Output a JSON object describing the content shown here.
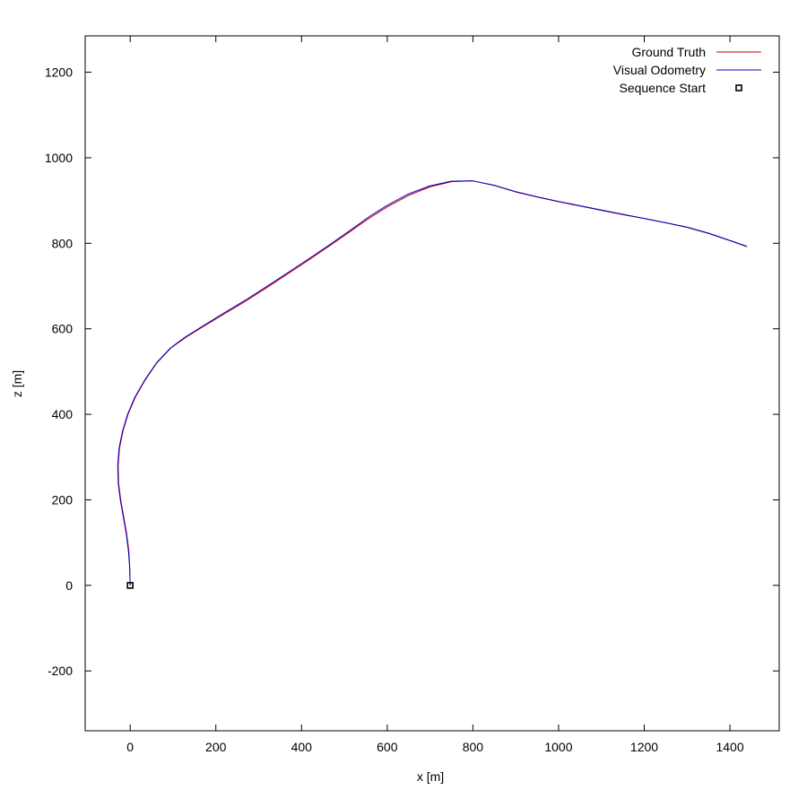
{
  "chart_data": {
    "type": "line",
    "xlabel": "x [m]",
    "ylabel": "z [m]",
    "xlim": [
      -105,
      1515
    ],
    "ylim": [
      -340,
      1285
    ],
    "xticks": [
      0,
      200,
      400,
      600,
      800,
      1000,
      1200,
      1400
    ],
    "yticks": [
      -200,
      0,
      200,
      400,
      600,
      800,
      1000,
      1200
    ],
    "grid": false,
    "legend_position": "top-right",
    "series": [
      {
        "name": "Ground Truth",
        "color": "#cc0000",
        "points": [
          [
            0,
            0
          ],
          [
            -1,
            40
          ],
          [
            -3,
            80
          ],
          [
            -8,
            120
          ],
          [
            -15,
            160
          ],
          [
            -22,
            200
          ],
          [
            -27,
            240
          ],
          [
            -28,
            280
          ],
          [
            -25,
            320
          ],
          [
            -17,
            360
          ],
          [
            -5,
            400
          ],
          [
            12,
            440
          ],
          [
            35,
            480
          ],
          [
            62,
            520
          ],
          [
            95,
            555
          ],
          [
            130,
            580
          ],
          [
            170,
            605
          ],
          [
            220,
            635
          ],
          [
            270,
            665
          ],
          [
            320,
            697
          ],
          [
            370,
            730
          ],
          [
            420,
            763
          ],
          [
            470,
            797
          ],
          [
            520,
            832
          ],
          [
            560,
            860
          ],
          [
            600,
            885
          ],
          [
            650,
            912
          ],
          [
            700,
            932
          ],
          [
            750,
            944
          ],
          [
            800,
            946
          ],
          [
            850,
            935
          ],
          [
            900,
            920
          ],
          [
            950,
            908
          ],
          [
            1000,
            897
          ],
          [
            1050,
            887
          ],
          [
            1100,
            877
          ],
          [
            1150,
            867
          ],
          [
            1200,
            858
          ],
          [
            1250,
            848
          ],
          [
            1300,
            837
          ],
          [
            1350,
            823
          ],
          [
            1400,
            806
          ],
          [
            1440,
            792
          ]
        ]
      },
      {
        "name": "Visual Odometry",
        "color": "#0000cc",
        "points": [
          [
            0,
            0
          ],
          [
            -1,
            40
          ],
          [
            -4,
            80
          ],
          [
            -9,
            120
          ],
          [
            -16,
            160
          ],
          [
            -23,
            200
          ],
          [
            -28,
            240
          ],
          [
            -29,
            280
          ],
          [
            -26,
            320
          ],
          [
            -18,
            360
          ],
          [
            -6,
            400
          ],
          [
            11,
            440
          ],
          [
            34,
            480
          ],
          [
            61,
            520
          ],
          [
            94,
            555
          ],
          [
            129,
            581
          ],
          [
            169,
            606
          ],
          [
            219,
            637
          ],
          [
            269,
            667
          ],
          [
            319,
            699
          ],
          [
            369,
            732
          ],
          [
            419,
            765
          ],
          [
            469,
            799
          ],
          [
            519,
            834
          ],
          [
            559,
            863
          ],
          [
            599,
            888
          ],
          [
            649,
            915
          ],
          [
            699,
            934
          ],
          [
            749,
            945
          ],
          [
            799,
            946
          ],
          [
            849,
            936
          ],
          [
            899,
            921
          ],
          [
            949,
            909
          ],
          [
            999,
            898
          ],
          [
            1049,
            888
          ],
          [
            1099,
            878
          ],
          [
            1149,
            868
          ],
          [
            1199,
            858
          ],
          [
            1249,
            848
          ],
          [
            1299,
            838
          ],
          [
            1349,
            824
          ],
          [
            1399,
            807
          ],
          [
            1439,
            793
          ]
        ]
      },
      {
        "name": "Sequence Start",
        "color": "#000000",
        "marker": "square",
        "points": [
          [
            0,
            0
          ]
        ]
      }
    ]
  }
}
